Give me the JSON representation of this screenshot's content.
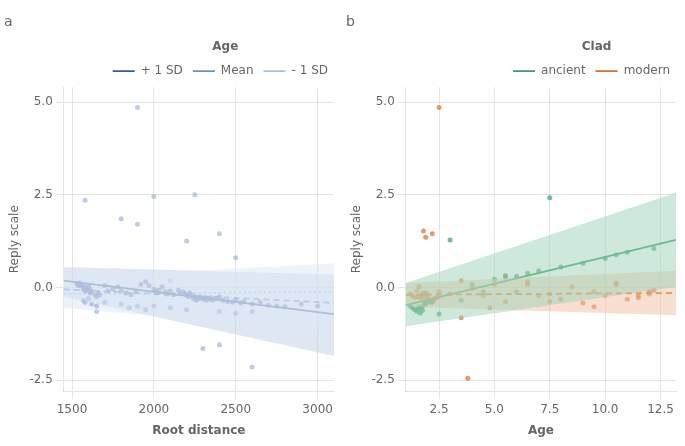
{
  "chart_data": [
    {
      "type": "scatter",
      "title": "a",
      "x_label": "Root distance",
      "y_label": "Reply scale",
      "xlim": [
        1450,
        3100
      ],
      "ylim": [
        -2.8,
        5.4
      ],
      "xticks": [
        1500,
        2000,
        2500,
        3000
      ],
      "yticks": [
        -2.5,
        {
          "value": 0.0,
          "label": "0.0"
        },
        2.5,
        {
          "value": 5.0,
          "label": "5.0"
        }
      ],
      "grid": true,
      "legend": "upper right",
      "legend_title": "Age",
      "series": [
        {
          "type": "area",
          "color": "#dde7f5",
          "x": [
            1450,
            3100
          ],
          "upper": [
            0.25,
            0.65
          ],
          "lower": [
            -0.55,
            -1.2
          ]
        },
        {
          "type": "area",
          "color": "#c0cfe8",
          "x": [
            1450,
            3100
          ],
          "upper": [
            0.55,
            0.35
          ],
          "lower": [
            -0.25,
            -1.85
          ]
        },
        {
          "type": "scatter",
          "color": "#a0b8d8",
          "x": [
            1580,
            1800,
            1900,
            2000,
            2100,
            2300,
            2400,
            2600,
            1650,
            2200,
            2400,
            2500
          ],
          "values": [
            2.35,
            1.85,
            1.7,
            2.45,
            0.18,
            -1.65,
            -1.55,
            -2.15,
            -0.65,
            1.25,
            1.45,
            0.8
          ]
        },
        {
          "type": "scatter",
          "color": "#a0b8d8",
          "x": [
            1900,
            2250
          ],
          "values": [
            4.85,
            2.5
          ]
        },
        {
          "type": "scatter",
          "color": "#6080b8",
          "x": [
            1570,
            1580,
            1600,
            1620,
            1650,
            1700,
            1800,
            1850,
            1900,
            1950,
            2000,
            2100,
            2200,
            2400,
            2500,
            2600
          ],
          "values": [
            -0.35,
            -0.4,
            -0.3,
            -0.45,
            -0.5,
            -0.4,
            -0.45,
            -0.55,
            -0.5,
            -0.6,
            -0.5,
            -0.55,
            -0.6,
            -0.65,
            -0.7,
            -0.65
          ]
        },
        {
          "type": "scatter",
          "color": "#3b5998",
          "x": [
            1530,
            1535,
            1540,
            1545,
            1550,
            1555,
            1560,
            1565,
            1570,
            1575,
            1580,
            1585,
            1590,
            1600,
            1605,
            1610,
            1615,
            1620,
            1640,
            1650,
            1660,
            1670,
            1700,
            1720,
            1750,
            1780,
            1800,
            1830,
            1860,
            1890,
            1920,
            1950,
            1970,
            2000,
            2010,
            2020,
            2030,
            2050,
            2070,
            2080,
            2100,
            2120,
            2150,
            2160,
            2180,
            2190,
            2200,
            2210,
            2220,
            2230,
            2240,
            2250,
            2260,
            2270,
            2280,
            2290,
            2300,
            2310,
            2320,
            2330,
            2340,
            2350,
            2360,
            2380,
            2400,
            2420,
            2450,
            2480,
            2500,
            2530,
            2550,
            2600,
            2650,
            2700,
            2750,
            2800,
            2900,
            3000
          ],
          "values": [
            0.1,
            0.08,
            0.05,
            0.12,
            0.06,
            0.09,
            0.04,
            0.07,
            -0.05,
            0.02,
            -0.1,
            -0.05,
            -0.08,
            0.05,
            -0.02,
            -0.15,
            -0.1,
            -0.12,
            -0.2,
            -0.25,
            -0.15,
            -0.2,
            0.05,
            -0.1,
            -0.05,
            0.02,
            -0.1,
            -0.15,
            -0.2,
            -0.1,
            0.08,
            0.15,
            0.05,
            -0.05,
            -0.1,
            -0.15,
            -0.08,
            0.02,
            -0.12,
            -0.18,
            -0.1,
            -0.2,
            -0.08,
            -0.15,
            -0.12,
            -0.18,
            -0.2,
            -0.25,
            -0.15,
            -0.2,
            -0.3,
            -0.25,
            -0.35,
            -0.3,
            -0.25,
            -0.28,
            -0.32,
            -0.28,
            -0.35,
            -0.3,
            -0.32,
            -0.28,
            -0.35,
            -0.3,
            -0.25,
            -0.35,
            -0.38,
            -0.4,
            -0.35,
            -0.42,
            -0.38,
            -0.45,
            -0.4,
            -0.48,
            -0.5,
            -0.52,
            -0.45,
            -0.5
          ]
        },
        {
          "type": "line",
          "name": "+ 1 SD",
          "color": "#3b5998",
          "line_style": "solid",
          "x": [
            1450,
            3100
          ],
          "values": [
            0.18,
            -0.72
          ]
        },
        {
          "type": "line",
          "name": "Mean",
          "color": "#7090c0",
          "line_style": "dashed",
          "x": [
            1450,
            3100
          ],
          "values": [
            -0.05,
            -0.42
          ]
        },
        {
          "type": "line",
          "name": "- 1 SD",
          "color": "#a8c0dc",
          "line_style": "dotted",
          "x": [
            1450,
            3100
          ],
          "values": [
            -0.18,
            -0.12
          ]
        }
      ]
    },
    {
      "type": "scatter",
      "title": "b",
      "x_label": "Age",
      "y_label": "Reply scale",
      "xlim": [
        1.0,
        13.2
      ],
      "ylim": [
        -2.8,
        5.4
      ],
      "xticks": [
        2.5,
        {
          "value": 5.0,
          "label": "5.0"
        },
        7.5,
        {
          "value": 10.0,
          "label": "10.0"
        },
        12.5
      ],
      "yticks": [
        -2.5,
        {
          "value": 0.0,
          "label": "0.0"
        },
        2.5,
        {
          "value": 5.0,
          "label": "5.0"
        }
      ],
      "grid": true,
      "legend": "upper right",
      "legend_title": "Clad",
      "series": [
        {
          "type": "area",
          "color": "#9dd4b8",
          "x": [
            1.0,
            13.2
          ],
          "upper": [
            0.12,
            2.55
          ],
          "lower": [
            -1.05,
            0.02
          ]
        },
        {
          "type": "area",
          "color": "#f2c0a0",
          "x": [
            1.0,
            13.2
          ],
          "upper": [
            0.12,
            0.45
          ],
          "lower": [
            -0.52,
            -0.75
          ]
        },
        {
          "type": "scatter",
          "color": "#3a9e6e",
          "x": [
            1.2,
            1.3,
            1.4,
            1.5,
            1.55,
            1.6,
            1.65,
            1.7,
            1.75,
            1.8,
            1.85,
            1.9,
            1.95,
            2.0,
            2.1,
            2.2,
            2.5,
            3.5,
            4.0,
            4.5,
            5.0,
            5.5,
            6.0,
            6.5,
            7.0,
            8.0,
            9.0,
            10.0,
            10.5,
            11.0,
            12.2
          ],
          "values": [
            -0.5,
            -0.55,
            -0.6,
            -0.65,
            -0.58,
            -0.52,
            -0.7,
            -0.55,
            -0.62,
            -0.48,
            -0.42,
            -0.45,
            -0.4,
            -0.35,
            -0.4,
            -0.38,
            -0.72,
            -0.35,
            0.08,
            -0.12,
            0.22,
            0.28,
            0.3,
            0.38,
            0.45,
            0.55,
            0.65,
            0.78,
            0.88,
            0.95,
            1.05
          ]
        },
        {
          "type": "scatter",
          "color": "#3a9e6e",
          "x": [
            3.0,
            7.5
          ],
          "values": [
            1.28,
            2.42
          ]
        },
        {
          "type": "scatter",
          "color": "#d4722a",
          "x": [
            1.2,
            1.3,
            1.4,
            1.5,
            1.55,
            1.6,
            1.65,
            1.7,
            1.75,
            1.8,
            1.85,
            1.9,
            1.95,
            2.0,
            2.1,
            2.2,
            2.3,
            2.4,
            2.5,
            3.0,
            3.5,
            4.0,
            4.5,
            5.0,
            5.5,
            6.0,
            6.5,
            7.0,
            7.5,
            8.0,
            8.5,
            9.0,
            9.5,
            10.0,
            10.5,
            11.0,
            11.5,
            12.0,
            12.2
          ],
          "values": [
            -0.18,
            -0.22,
            -0.28,
            -0.1,
            -0.25,
            0.02,
            -0.28,
            -0.22,
            -0.18,
            -0.15,
            -0.32,
            -0.2,
            -0.15,
            -0.25,
            -0.35,
            -0.4,
            -0.3,
            -0.28,
            -0.12,
            -0.18,
            0.18,
            -0.02,
            -0.22,
            0.08,
            -0.38,
            -0.12,
            0.08,
            -0.22,
            -0.18,
            -0.32,
            0.02,
            -0.42,
            -0.12,
            -0.22,
            0.08,
            -0.32,
            -0.22,
            -0.12,
            -0.08
          ]
        },
        {
          "type": "scatter",
          "color": "#d4722a",
          "x": [
            1.8,
            1.9,
            2.2,
            3.5,
            4.8,
            5.5,
            6.5,
            7.5,
            9.5,
            10.5,
            11.5,
            12.0
          ],
          "values": [
            1.52,
            1.35,
            1.45,
            -0.82,
            -0.55,
            0.32,
            0.15,
            -0.38,
            -0.52,
            0.12,
            -0.28,
            -0.18
          ]
        },
        {
          "type": "scatter",
          "color": "#d4722a",
          "x": [
            2.5,
            3.8
          ],
          "values": [
            4.85,
            -2.45
          ]
        },
        {
          "type": "line",
          "name": "ancient",
          "color": "#3a9e6e",
          "line_style": "solid",
          "x": [
            1.0,
            13.2
          ],
          "values": [
            -0.48,
            1.28
          ]
        },
        {
          "type": "line",
          "name": "modern",
          "color": "#d4722a",
          "line_style": "dashed",
          "x": [
            1.0,
            13.2
          ],
          "values": [
            -0.2,
            -0.15
          ]
        }
      ]
    }
  ]
}
